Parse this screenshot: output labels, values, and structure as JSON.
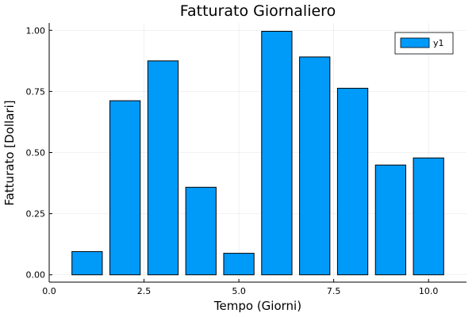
{
  "chart_data": {
    "type": "bar",
    "title": "Fatturato Giornaliero",
    "xlabel": "Tempo (Giorni)",
    "ylabel": "Fatturato [Dollari]",
    "x": [
      1,
      2,
      3,
      4,
      5,
      6,
      7,
      8,
      9,
      10
    ],
    "series": [
      {
        "name": "y1",
        "values": [
          0.095,
          0.712,
          0.875,
          0.358,
          0.088,
          0.996,
          0.891,
          0.763,
          0.449,
          0.478
        ],
        "color": "#009af9"
      }
    ],
    "xlim": [
      0,
      11
    ],
    "ylim": [
      -0.03,
      1.03
    ],
    "xticks": [
      0,
      2.5,
      5,
      7.5,
      10
    ],
    "xtick_labels": [
      "0.0",
      "2.5",
      "5.0",
      "7.5",
      "10.0"
    ],
    "yticks": [
      0,
      0.25,
      0.5,
      0.75,
      1
    ],
    "ytick_labels": [
      "0.00",
      "0.25",
      "0.50",
      "0.75",
      "1.00"
    ],
    "grid": true,
    "legend": "top-right"
  }
}
